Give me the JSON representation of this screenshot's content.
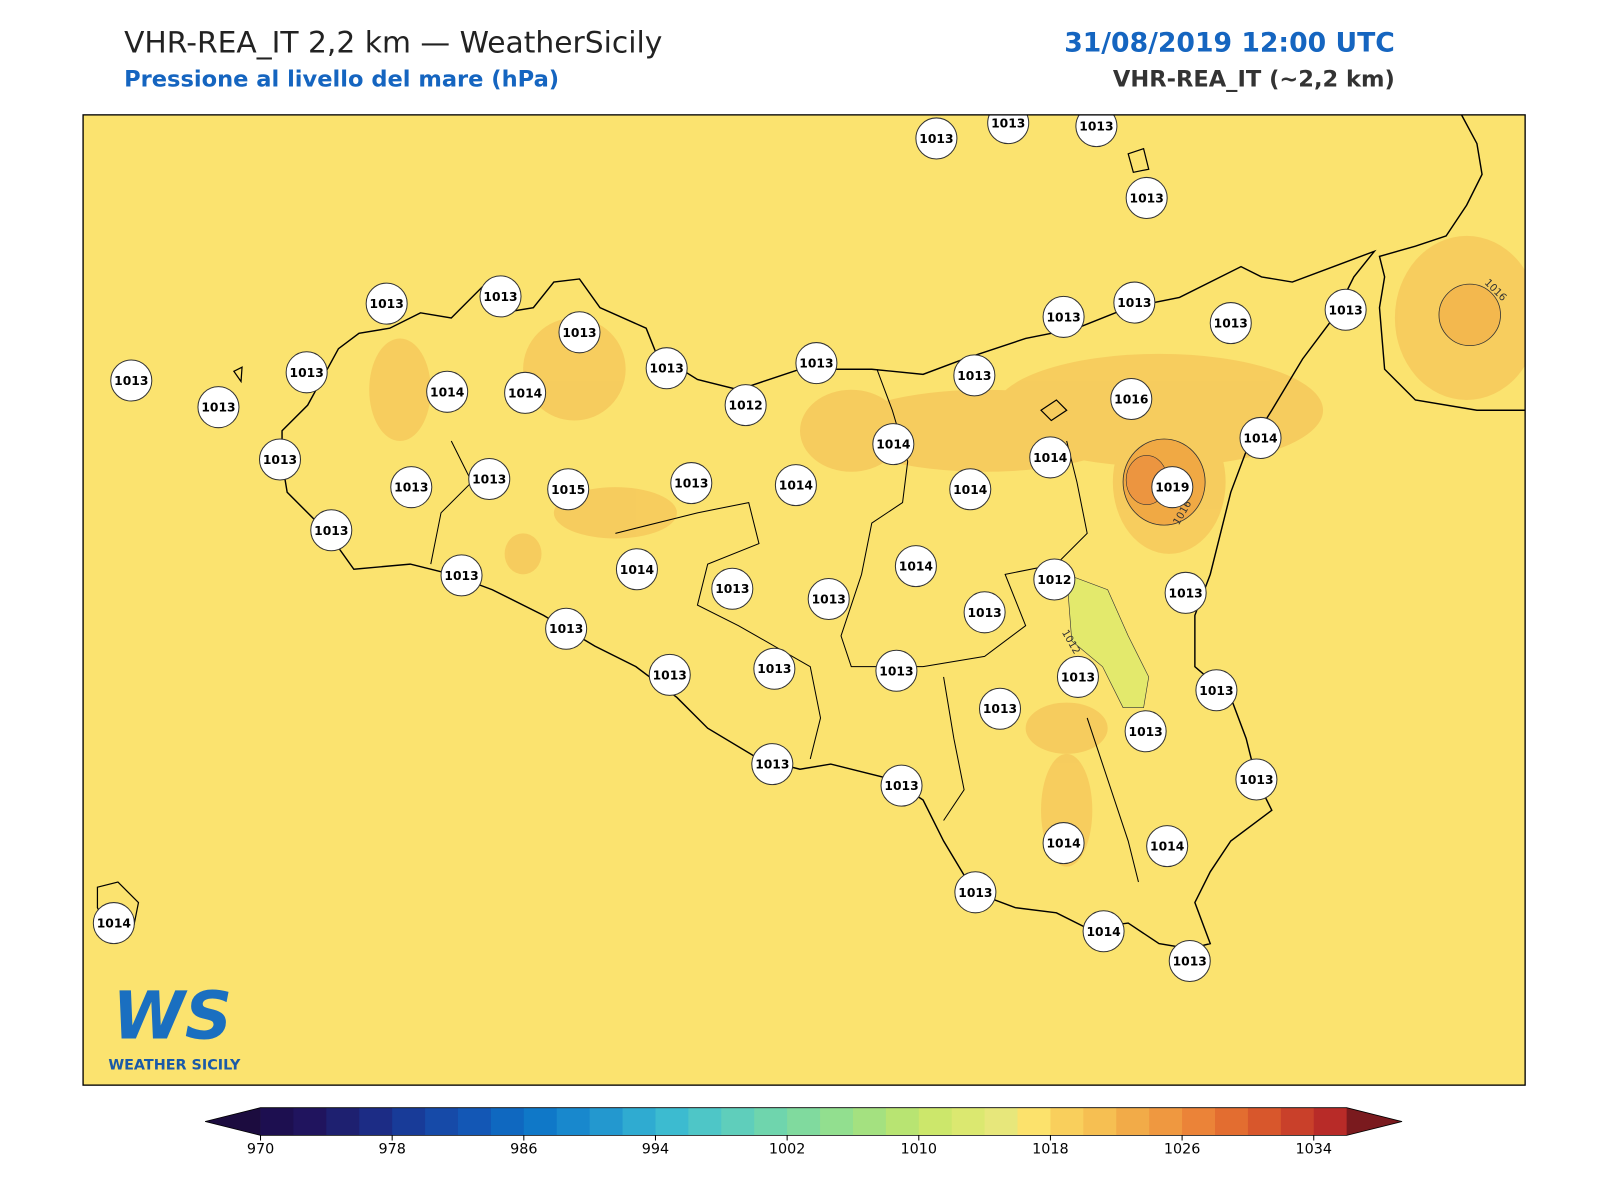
{
  "header": {
    "title": "VHR-REA_IT 2,2 km — WeatherSicily",
    "subtitle": "Pressione al livello del mare (hPa)",
    "datetime": "31/08/2019 12:00 UTC",
    "model": "VHR-REA_IT (~2,2 km)"
  },
  "map": {
    "stations": [
      1013,
      1013,
      1013,
      1013,
      1013,
      1013,
      1013,
      1013,
      1013,
      1013,
      1014,
      1014,
      1013,
      1013,
      1012,
      1013,
      1013,
      1013,
      1013,
      1013,
      1016,
      1014,
      1014,
      1014,
      1014,
      1019,
      1013,
      1013,
      1013,
      1015,
      1013,
      1014,
      1013,
      1013,
      1014,
      1014,
      1012,
      1013,
      1013,
      1013,
      1013,
      1013,
      1013,
      1013,
      1013,
      1013,
      1013,
      1013,
      1013,
      1013,
      1013,
      1013,
      1014,
      1014,
      1013,
      1014,
      1013,
      1014
    ],
    "contour_labels": [
      "1016",
      "1016",
      "1012"
    ]
  },
  "logo": {
    "mark": "WS",
    "name": "WEATHER SICILY"
  },
  "colorbar": {
    "lim": [
      970,
      1036
    ],
    "ticks": [
      970,
      978,
      986,
      994,
      1002,
      1010,
      1018,
      1026,
      1034
    ],
    "under": "#1c0c3f",
    "over": "#7a1a1e",
    "colors": [
      "#1d0f50",
      "#20145e",
      "#1e2070",
      "#1c2c85",
      "#183b98",
      "#164aa8",
      "#1357b5",
      "#0f68c0",
      "#0f78c8",
      "#1888cd",
      "#2398cf",
      "#2fabd1",
      "#3cbbd0",
      "#4ec6c7",
      "#5fcebb",
      "#6fd5ad",
      "#80da9e",
      "#92df8f",
      "#a4e180",
      "#b8e472",
      "#cce76b",
      "#dbe870",
      "#e7e77b",
      "#fce26c",
      "#f9cf5c",
      "#f6bf52",
      "#f2ab48",
      "#ef9840",
      "#eb8338",
      "#e36d30",
      "#d8572c",
      "#c9402a",
      "#b82b28"
    ]
  }
}
